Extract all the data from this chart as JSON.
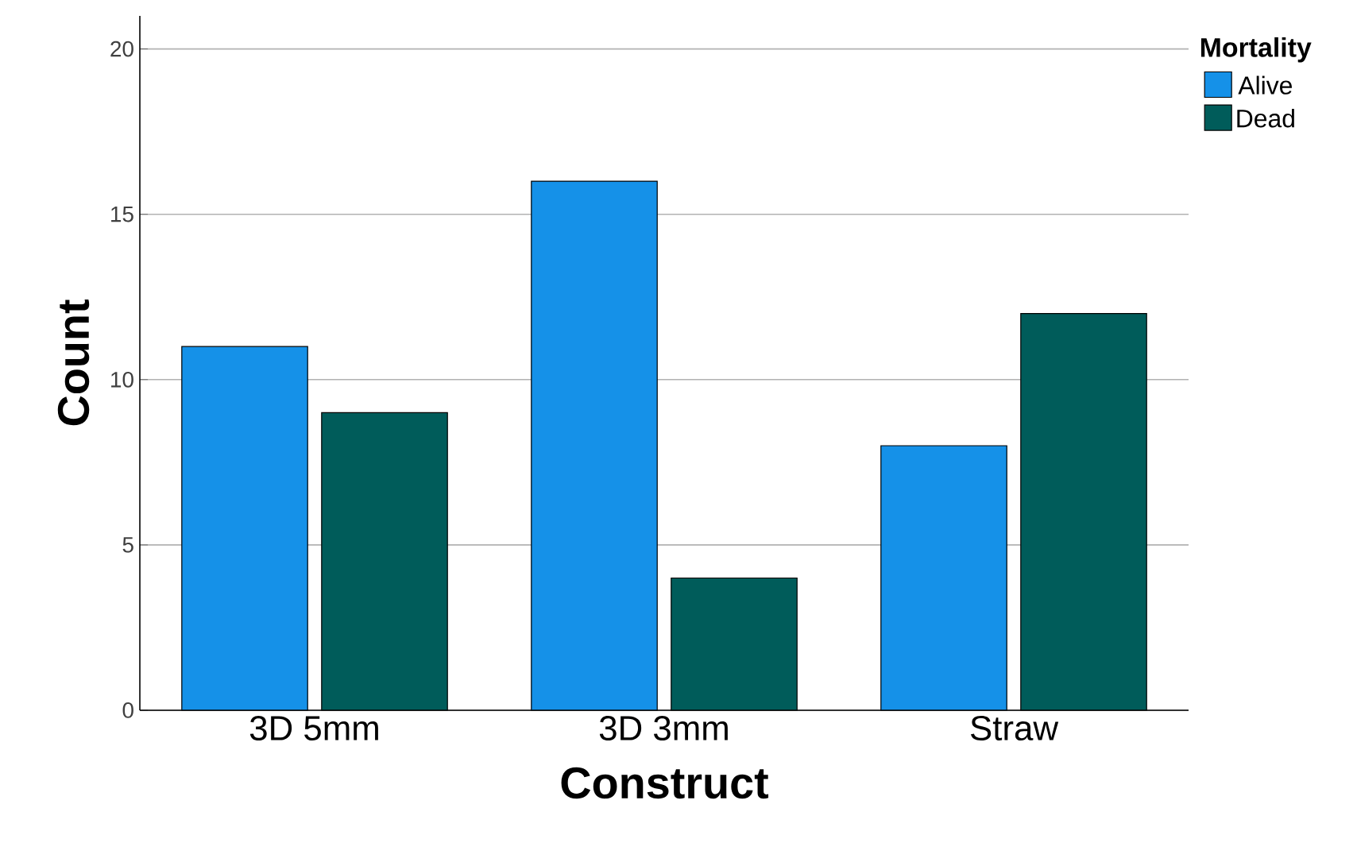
{
  "chart_data": {
    "type": "bar",
    "xlabel": "Construct",
    "ylabel": "Count",
    "legend_title": "Mortality",
    "categories": [
      "3D 5mm",
      "3D 3mm",
      "Straw"
    ],
    "series": [
      {
        "name": "Alive",
        "color": "#1591e8",
        "values": [
          11,
          16,
          8
        ]
      },
      {
        "name": "Dead",
        "color": "#005c5a",
        "values": [
          9,
          4,
          12
        ]
      }
    ],
    "ylim": [
      0,
      21
    ],
    "yticks": [
      0,
      5,
      10,
      15,
      20
    ],
    "grid": "y",
    "legend": "right"
  }
}
